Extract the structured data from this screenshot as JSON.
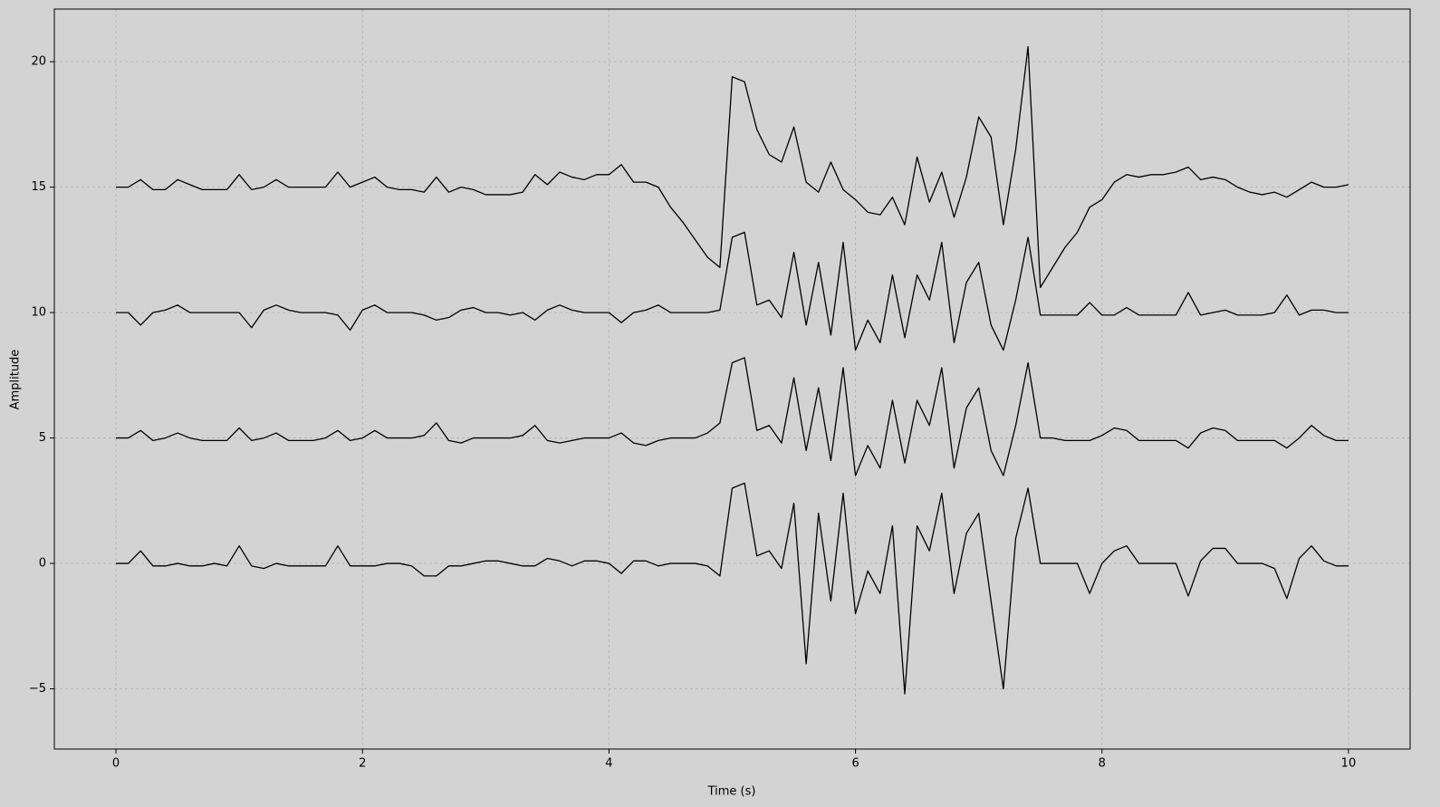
{
  "chart_data": {
    "type": "line",
    "xlabel": "Time (s)",
    "ylabel": "Amplitude",
    "x": [
      0,
      0.1,
      0.2,
      0.3,
      0.4,
      0.5,
      0.6,
      0.7,
      0.8,
      0.9,
      1,
      1.1,
      1.2,
      1.3,
      1.4,
      1.5,
      1.6,
      1.7,
      1.8,
      1.9,
      2,
      2.1,
      2.2,
      2.3,
      2.4,
      2.5,
      2.6,
      2.7,
      2.8,
      2.9,
      3,
      3.1,
      3.2,
      3.3,
      3.4,
      3.5,
      3.6,
      3.7,
      3.8,
      3.9,
      4,
      4.1,
      4.2,
      4.3,
      4.4,
      4.5,
      4.6,
      4.7,
      4.8,
      4.9,
      5,
      5.1,
      5.2,
      5.3,
      5.4,
      5.5,
      5.6,
      5.7,
      5.8,
      5.9,
      6,
      6.1,
      6.2,
      6.3,
      6.4,
      6.5,
      6.6,
      6.7,
      6.8,
      6.9,
      7,
      7.1,
      7.2,
      7.3,
      7.4,
      7.5,
      7.6,
      7.7,
      7.8,
      7.9,
      8,
      8.1,
      8.2,
      8.3,
      8.4,
      8.5,
      8.6,
      8.7,
      8.8,
      8.9,
      9,
      9.1,
      9.2,
      9.3,
      9.4,
      9.5,
      9.6,
      9.7,
      9.8,
      9.9,
      10
    ],
    "series": [
      {
        "color": "#000000",
        "values": [
          15.0,
          15.0,
          15.3,
          14.9,
          14.9,
          15.3,
          15.1,
          14.9,
          14.9,
          14.9,
          15.5,
          14.9,
          15.0,
          15.3,
          15.0,
          15.0,
          15.0,
          15.0,
          15.6,
          15.0,
          15.2,
          15.4,
          15.0,
          14.9,
          14.9,
          14.8,
          15.4,
          14.8,
          15.0,
          14.9,
          14.7,
          14.7,
          14.7,
          14.8,
          15.5,
          15.1,
          15.6,
          15.4,
          15.3,
          15.5,
          15.5,
          15.9,
          15.2,
          15.2,
          15.0,
          14.2,
          13.6,
          12.9,
          12.2,
          11.8,
          19.4,
          19.2,
          17.3,
          16.3,
          16.0,
          17.4,
          15.2,
          14.8,
          16.0,
          14.9,
          14.5,
          14.0,
          13.9,
          14.6,
          13.5,
          16.2,
          14.4,
          15.6,
          13.8,
          15.4,
          17.8,
          17.0,
          13.5,
          16.5,
          20.6,
          11.0,
          11.8,
          12.6,
          13.2,
          14.2,
          14.5,
          15.2,
          15.5,
          15.4,
          15.5,
          15.5,
          15.6,
          15.8,
          15.3,
          15.4,
          15.3,
          15.0,
          14.8,
          14.7,
          14.8,
          14.6,
          14.9,
          15.2,
          15.0,
          15.0,
          15.1
        ]
      },
      {
        "color": "#000000",
        "values": [
          10.0,
          10.0,
          9.5,
          10.0,
          10.1,
          10.3,
          10.0,
          10.0,
          10.0,
          10.0,
          10.0,
          9.4,
          10.1,
          10.3,
          10.1,
          10.0,
          10.0,
          10.0,
          9.9,
          9.3,
          10.1,
          10.3,
          10.0,
          10.0,
          10.0,
          9.9,
          9.7,
          9.8,
          10.1,
          10.2,
          10.0,
          10.0,
          9.9,
          10.0,
          9.7,
          10.1,
          10.3,
          10.1,
          10.0,
          10.0,
          10.0,
          9.6,
          10.0,
          10.1,
          10.3,
          10.0,
          10.0,
          10.0,
          10.0,
          10.1,
          13.0,
          13.2,
          10.3,
          10.5,
          9.8,
          12.4,
          9.5,
          12.0,
          9.1,
          12.8,
          8.5,
          9.7,
          8.8,
          11.5,
          9.0,
          11.5,
          10.5,
          12.8,
          8.8,
          11.2,
          12.0,
          9.5,
          8.5,
          10.5,
          13.0,
          9.9,
          9.9,
          9.9,
          9.9,
          10.4,
          9.9,
          9.9,
          10.2,
          9.9,
          9.9,
          9.9,
          9.9,
          10.8,
          9.9,
          10.0,
          10.1,
          9.9,
          9.9,
          9.9,
          10.0,
          10.7,
          9.9,
          10.1,
          10.1,
          10.0,
          10.0
        ]
      },
      {
        "color": "#000000",
        "values": [
          5.0,
          5.0,
          5.3,
          4.9,
          5.0,
          5.2,
          5.0,
          4.9,
          4.9,
          4.9,
          5.4,
          4.9,
          5.0,
          5.2,
          4.9,
          4.9,
          4.9,
          5.0,
          5.3,
          4.9,
          5.0,
          5.3,
          5.0,
          5.0,
          5.0,
          5.1,
          5.6,
          4.9,
          4.8,
          5.0,
          5.0,
          5.0,
          5.0,
          5.1,
          5.5,
          4.9,
          4.8,
          4.9,
          5.0,
          5.0,
          5.0,
          5.2,
          4.8,
          4.7,
          4.9,
          5.0,
          5.0,
          5.0,
          5.2,
          5.6,
          8.0,
          8.2,
          5.3,
          5.5,
          4.8,
          7.4,
          4.5,
          7.0,
          4.1,
          7.8,
          3.5,
          4.7,
          3.8,
          6.5,
          4.0,
          6.5,
          5.5,
          7.8,
          3.8,
          6.2,
          7.0,
          4.5,
          3.5,
          5.5,
          8.0,
          5.0,
          5.0,
          4.9,
          4.9,
          4.9,
          5.1,
          5.4,
          5.3,
          4.9,
          4.9,
          4.9,
          4.9,
          4.6,
          5.2,
          5.4,
          5.3,
          4.9,
          4.9,
          4.9,
          4.9,
          4.6,
          5.0,
          5.5,
          5.1,
          4.9,
          4.9
        ]
      },
      {
        "color": "#000000",
        "values": [
          0.0,
          0.0,
          0.5,
          -0.1,
          -0.1,
          0.0,
          -0.1,
          -0.1,
          0.0,
          -0.1,
          0.7,
          -0.1,
          -0.2,
          0.0,
          -0.1,
          -0.1,
          -0.1,
          -0.1,
          0.7,
          -0.1,
          -0.1,
          -0.1,
          0.0,
          0.0,
          -0.1,
          -0.5,
          -0.5,
          -0.1,
          -0.1,
          0.0,
          0.1,
          0.1,
          0.0,
          -0.1,
          -0.1,
          0.2,
          0.1,
          -0.1,
          0.1,
          0.1,
          0.0,
          -0.4,
          0.1,
          0.1,
          -0.1,
          0.0,
          0.0,
          0.0,
          -0.1,
          -0.5,
          3.0,
          3.2,
          0.3,
          0.5,
          -0.2,
          2.4,
          -4.0,
          2.0,
          -1.5,
          2.8,
          -2.0,
          -0.3,
          -1.2,
          1.5,
          -5.2,
          1.5,
          0.5,
          2.8,
          -1.2,
          1.2,
          2.0,
          -1.5,
          -5.0,
          1.0,
          3.0,
          0.0,
          0.0,
          0.0,
          0.0,
          -1.2,
          0.0,
          0.5,
          0.7,
          0.0,
          0.0,
          0.0,
          0.0,
          -1.3,
          0.1,
          0.6,
          0.6,
          0.0,
          0.0,
          0.0,
          -0.2,
          -1.4,
          0.2,
          0.7,
          0.1,
          -0.1,
          -0.1
        ]
      }
    ],
    "xlim": [
      -0.5,
      10.5
    ],
    "ylim": [
      -7.4,
      22.1
    ],
    "xticks": [
      0,
      2,
      4,
      6,
      8,
      10
    ],
    "yticks": [
      {
        "value": -5,
        "label": "−5"
      },
      0,
      5,
      10,
      15,
      20
    ],
    "grid": true,
    "background": "#d3d3d3"
  }
}
